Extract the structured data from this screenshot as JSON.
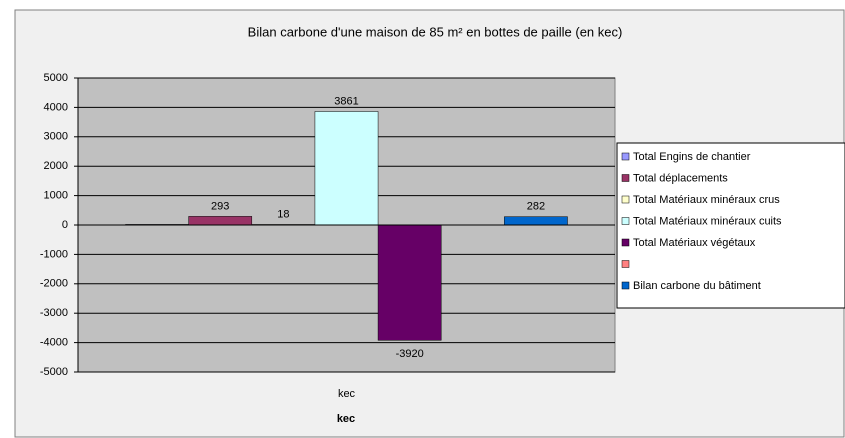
{
  "chart_data": {
    "type": "bar",
    "title": "Bilan carbone d'une maison de 85 m² en bottes de paille (en kec)",
    "categories": [
      "kec"
    ],
    "x_label": "kec",
    "series": [
      {
        "name": "Total Engins de chantier",
        "color": "#9999ff",
        "values": [
          20
        ]
      },
      {
        "name": "Total déplacements",
        "color": "#993366",
        "values": [
          293
        ]
      },
      {
        "name": "Total Matériaux minéraux crus",
        "color": "#ffffcc",
        "values": [
          18
        ]
      },
      {
        "name": "Total Matériaux minéraux cuits",
        "color": "#ccffff",
        "values": [
          3861
        ]
      },
      {
        "name": "Total Matériaux végétaux",
        "color": "#660066",
        "values": [
          -3920
        ]
      },
      {
        "name": null,
        "color": "#ff8080",
        "values": [
          null
        ]
      },
      {
        "name": "Bilan carbone du bâtiment",
        "color": "#0066cc",
        "values": [
          282
        ]
      }
    ],
    "value_labels": [
      null,
      "293",
      "18",
      "3861",
      "-3920",
      null,
      "282"
    ],
    "ylim": [
      -5000,
      5000
    ],
    "yticks": [
      -5000,
      -4000,
      -3000,
      -2000,
      -1000,
      0,
      1000,
      2000,
      3000,
      4000,
      5000
    ],
    "grid": true,
    "legend": "right"
  }
}
